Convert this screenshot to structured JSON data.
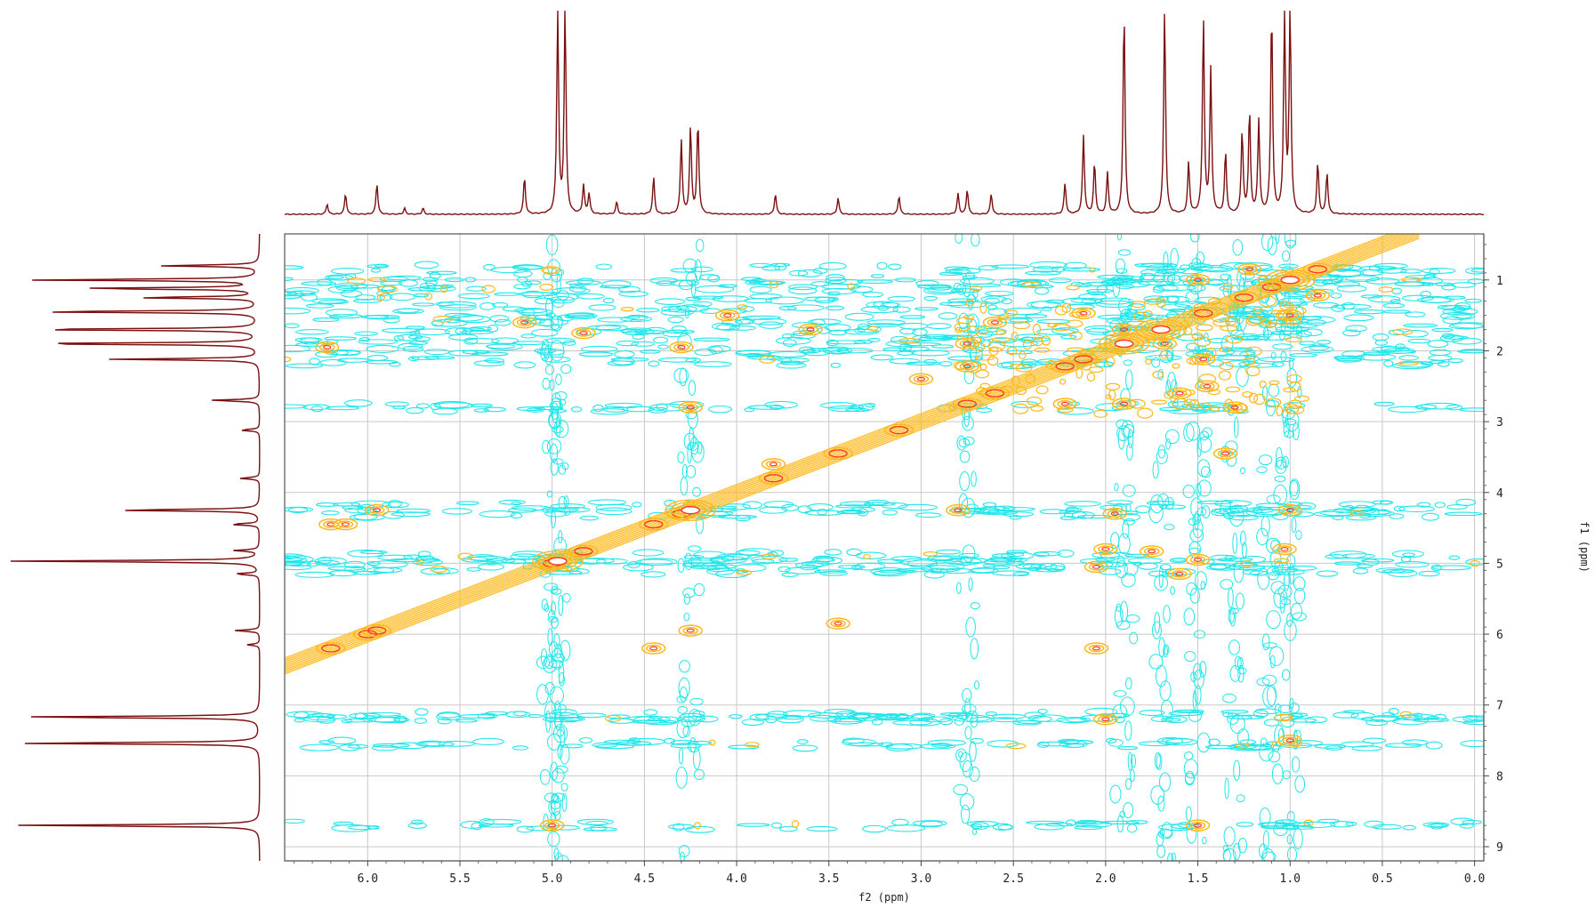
{
  "chart_data": {
    "type": "heatmap",
    "plot_kind": "2D NMR contour plot (COSY) with 1D projections",
    "xlabel": "f2 (ppm)",
    "ylabel": "f1 (ppm)",
    "x_reversed": true,
    "xlim": [
      6.45,
      -0.05
    ],
    "ylim": [
      0.35,
      9.2
    ],
    "x_ticks": [
      6.0,
      5.5,
      5.0,
      4.5,
      4.0,
      3.5,
      3.0,
      2.5,
      2.0,
      1.5,
      1.0,
      0.5,
      0.0
    ],
    "x_tick_labels": [
      "6.0",
      "5.5",
      "5.0",
      "4.5",
      "4.0",
      "3.5",
      "3.0",
      "2.5",
      "2.0",
      "1.5",
      "1.0",
      "0.5",
      "0.0"
    ],
    "y_ticks": [
      1,
      2,
      3,
      4,
      5,
      6,
      7,
      8,
      9
    ],
    "y_tick_labels": [
      "1",
      "2",
      "3",
      "4",
      "5",
      "6",
      "7",
      "8",
      "9"
    ],
    "grid": true,
    "colors": {
      "positive_contour": "#FFB81C",
      "positive_core": "#FF3B1F",
      "negative_contour": "#22E6EA",
      "projection_line": "#7A1010",
      "grid": "#c8c8c8",
      "frame": "#555555"
    },
    "top_projection_peaks": [
      {
        "ppm": 6.22,
        "height": 0.05
      },
      {
        "ppm": 6.12,
        "height": 0.1
      },
      {
        "ppm": 5.95,
        "height": 0.15
      },
      {
        "ppm": 5.8,
        "height": 0.03
      },
      {
        "ppm": 5.7,
        "height": 0.03
      },
      {
        "ppm": 5.15,
        "height": 0.18
      },
      {
        "ppm": 4.97,
        "height": 1.0
      },
      {
        "ppm": 4.93,
        "height": 1.0
      },
      {
        "ppm": 4.83,
        "height": 0.14
      },
      {
        "ppm": 4.8,
        "height": 0.1
      },
      {
        "ppm": 4.65,
        "height": 0.06
      },
      {
        "ppm": 4.45,
        "height": 0.18
      },
      {
        "ppm": 4.3,
        "height": 0.36
      },
      {
        "ppm": 4.25,
        "height": 0.42
      },
      {
        "ppm": 4.21,
        "height": 0.45
      },
      {
        "ppm": 3.79,
        "height": 0.1
      },
      {
        "ppm": 3.45,
        "height": 0.08
      },
      {
        "ppm": 3.12,
        "height": 0.09
      },
      {
        "ppm": 2.8,
        "height": 0.1
      },
      {
        "ppm": 2.75,
        "height": 0.12
      },
      {
        "ppm": 2.62,
        "height": 0.1
      },
      {
        "ppm": 2.22,
        "height": 0.15
      },
      {
        "ppm": 2.12,
        "height": 0.38
      },
      {
        "ppm": 2.06,
        "height": 0.25
      },
      {
        "ppm": 1.99,
        "height": 0.2
      },
      {
        "ppm": 1.9,
        "height": 1.0
      },
      {
        "ppm": 1.68,
        "height": 1.0
      },
      {
        "ppm": 1.55,
        "height": 0.25
      },
      {
        "ppm": 1.47,
        "height": 0.95
      },
      {
        "ppm": 1.43,
        "height": 0.7
      },
      {
        "ppm": 1.35,
        "height": 0.3
      },
      {
        "ppm": 1.26,
        "height": 0.4
      },
      {
        "ppm": 1.22,
        "height": 0.5
      },
      {
        "ppm": 1.17,
        "height": 0.45
      },
      {
        "ppm": 1.1,
        "height": 1.0
      },
      {
        "ppm": 1.03,
        "height": 1.0
      },
      {
        "ppm": 1.0,
        "height": 1.0
      },
      {
        "ppm": 0.85,
        "height": 0.25
      },
      {
        "ppm": 0.8,
        "height": 0.2
      }
    ],
    "left_projection_peaks": [
      {
        "ppm": 0.8,
        "height": 0.4
      },
      {
        "ppm": 1.0,
        "height": 0.95
      },
      {
        "ppm": 1.12,
        "height": 0.75
      },
      {
        "ppm": 1.25,
        "height": 0.5
      },
      {
        "ppm": 1.45,
        "height": 0.95
      },
      {
        "ppm": 1.7,
        "height": 1.0
      },
      {
        "ppm": 1.9,
        "height": 1.0
      },
      {
        "ppm": 2.12,
        "height": 0.6
      },
      {
        "ppm": 2.7,
        "height": 0.2
      },
      {
        "ppm": 3.12,
        "height": 0.08
      },
      {
        "ppm": 3.8,
        "height": 0.08
      },
      {
        "ppm": 4.25,
        "height": 0.6
      },
      {
        "ppm": 4.45,
        "height": 0.12
      },
      {
        "ppm": 4.82,
        "height": 0.1
      },
      {
        "ppm": 4.97,
        "height": 1.0
      },
      {
        "ppm": 5.15,
        "height": 0.1
      },
      {
        "ppm": 5.95,
        "height": 0.1
      },
      {
        "ppm": 6.15,
        "height": 0.05
      },
      {
        "ppm": 7.17,
        "height": 1.0
      },
      {
        "ppm": 7.54,
        "height": 1.0
      },
      {
        "ppm": 8.7,
        "height": 1.0
      }
    ],
    "noise_rows_f1": [
      0.85,
      1.0,
      1.1,
      1.25,
      1.4,
      1.55,
      1.7,
      1.85,
      2.0,
      2.15,
      2.8,
      4.2,
      4.3,
      4.9,
      5.0,
      5.1,
      7.15,
      7.2,
      7.55,
      8.7
    ],
    "noise_columns_f2": [
      5.0,
      4.97,
      4.25,
      2.75,
      1.9,
      1.68,
      1.5,
      1.3,
      1.1,
      1.0
    ],
    "diagonal": {
      "from": 6.45,
      "to": 0.3
    },
    "cross_peaks": [
      {
        "f2": 1.9,
        "f1": 1.7
      },
      {
        "f2": 1.68,
        "f1": 1.9
      },
      {
        "f2": 1.5,
        "f1": 1.0
      },
      {
        "f2": 1.0,
        "f1": 1.5
      },
      {
        "f2": 1.22,
        "f1": 0.85
      },
      {
        "f2": 0.85,
        "f1": 1.22
      },
      {
        "f2": 2.12,
        "f1": 1.47
      },
      {
        "f2": 1.47,
        "f1": 2.12
      },
      {
        "f2": 2.75,
        "f1": 1.9
      },
      {
        "f2": 1.9,
        "f1": 2.75
      },
      {
        "f2": 2.6,
        "f1": 1.6
      },
      {
        "f2": 1.6,
        "f1": 2.6
      },
      {
        "f2": 2.22,
        "f1": 2.75
      },
      {
        "f2": 2.75,
        "f1": 2.22
      },
      {
        "f2": 4.25,
        "f1": 2.8
      },
      {
        "f2": 2.8,
        "f1": 4.25
      },
      {
        "f2": 4.3,
        "f1": 1.95
      },
      {
        "f2": 1.95,
        "f1": 4.3
      },
      {
        "f2": 4.45,
        "f1": 6.2
      },
      {
        "f2": 6.2,
        "f1": 4.45
      },
      {
        "f2": 4.83,
        "f1": 1.75
      },
      {
        "f2": 1.75,
        "f1": 4.83
      },
      {
        "f2": 5.15,
        "f1": 1.6
      },
      {
        "f2": 1.6,
        "f1": 5.15
      },
      {
        "f2": 5.95,
        "f1": 4.25
      },
      {
        "f2": 4.25,
        "f1": 5.95
      },
      {
        "f2": 6.12,
        "f1": 4.45
      },
      {
        "f2": 6.22,
        "f1": 1.95
      },
      {
        "f2": 3.45,
        "f1": 5.85
      },
      {
        "f2": 1.35,
        "f1": 3.45
      },
      {
        "f2": 1.0,
        "f1": 4.25
      },
      {
        "f2": 1.03,
        "f1": 4.8
      },
      {
        "f2": 2.05,
        "f1": 5.05
      },
      {
        "f2": 2.05,
        "f1": 6.2
      },
      {
        "f2": 1.5,
        "f1": 4.95
      },
      {
        "f2": 2.0,
        "f1": 4.8
      },
      {
        "f2": 3.0,
        "f1": 2.4
      },
      {
        "f2": 3.6,
        "f1": 1.7
      },
      {
        "f2": 4.05,
        "f1": 1.5
      },
      {
        "f2": 3.8,
        "f1": 3.6
      },
      {
        "f2": 5.0,
        "f1": 8.7
      },
      {
        "f2": 1.5,
        "f1": 8.7
      },
      {
        "f2": 1.0,
        "f1": 7.5
      },
      {
        "f2": 2.0,
        "f1": 7.2
      },
      {
        "f2": 1.3,
        "f1": 2.8
      },
      {
        "f2": 1.45,
        "f1": 2.5
      }
    ]
  }
}
